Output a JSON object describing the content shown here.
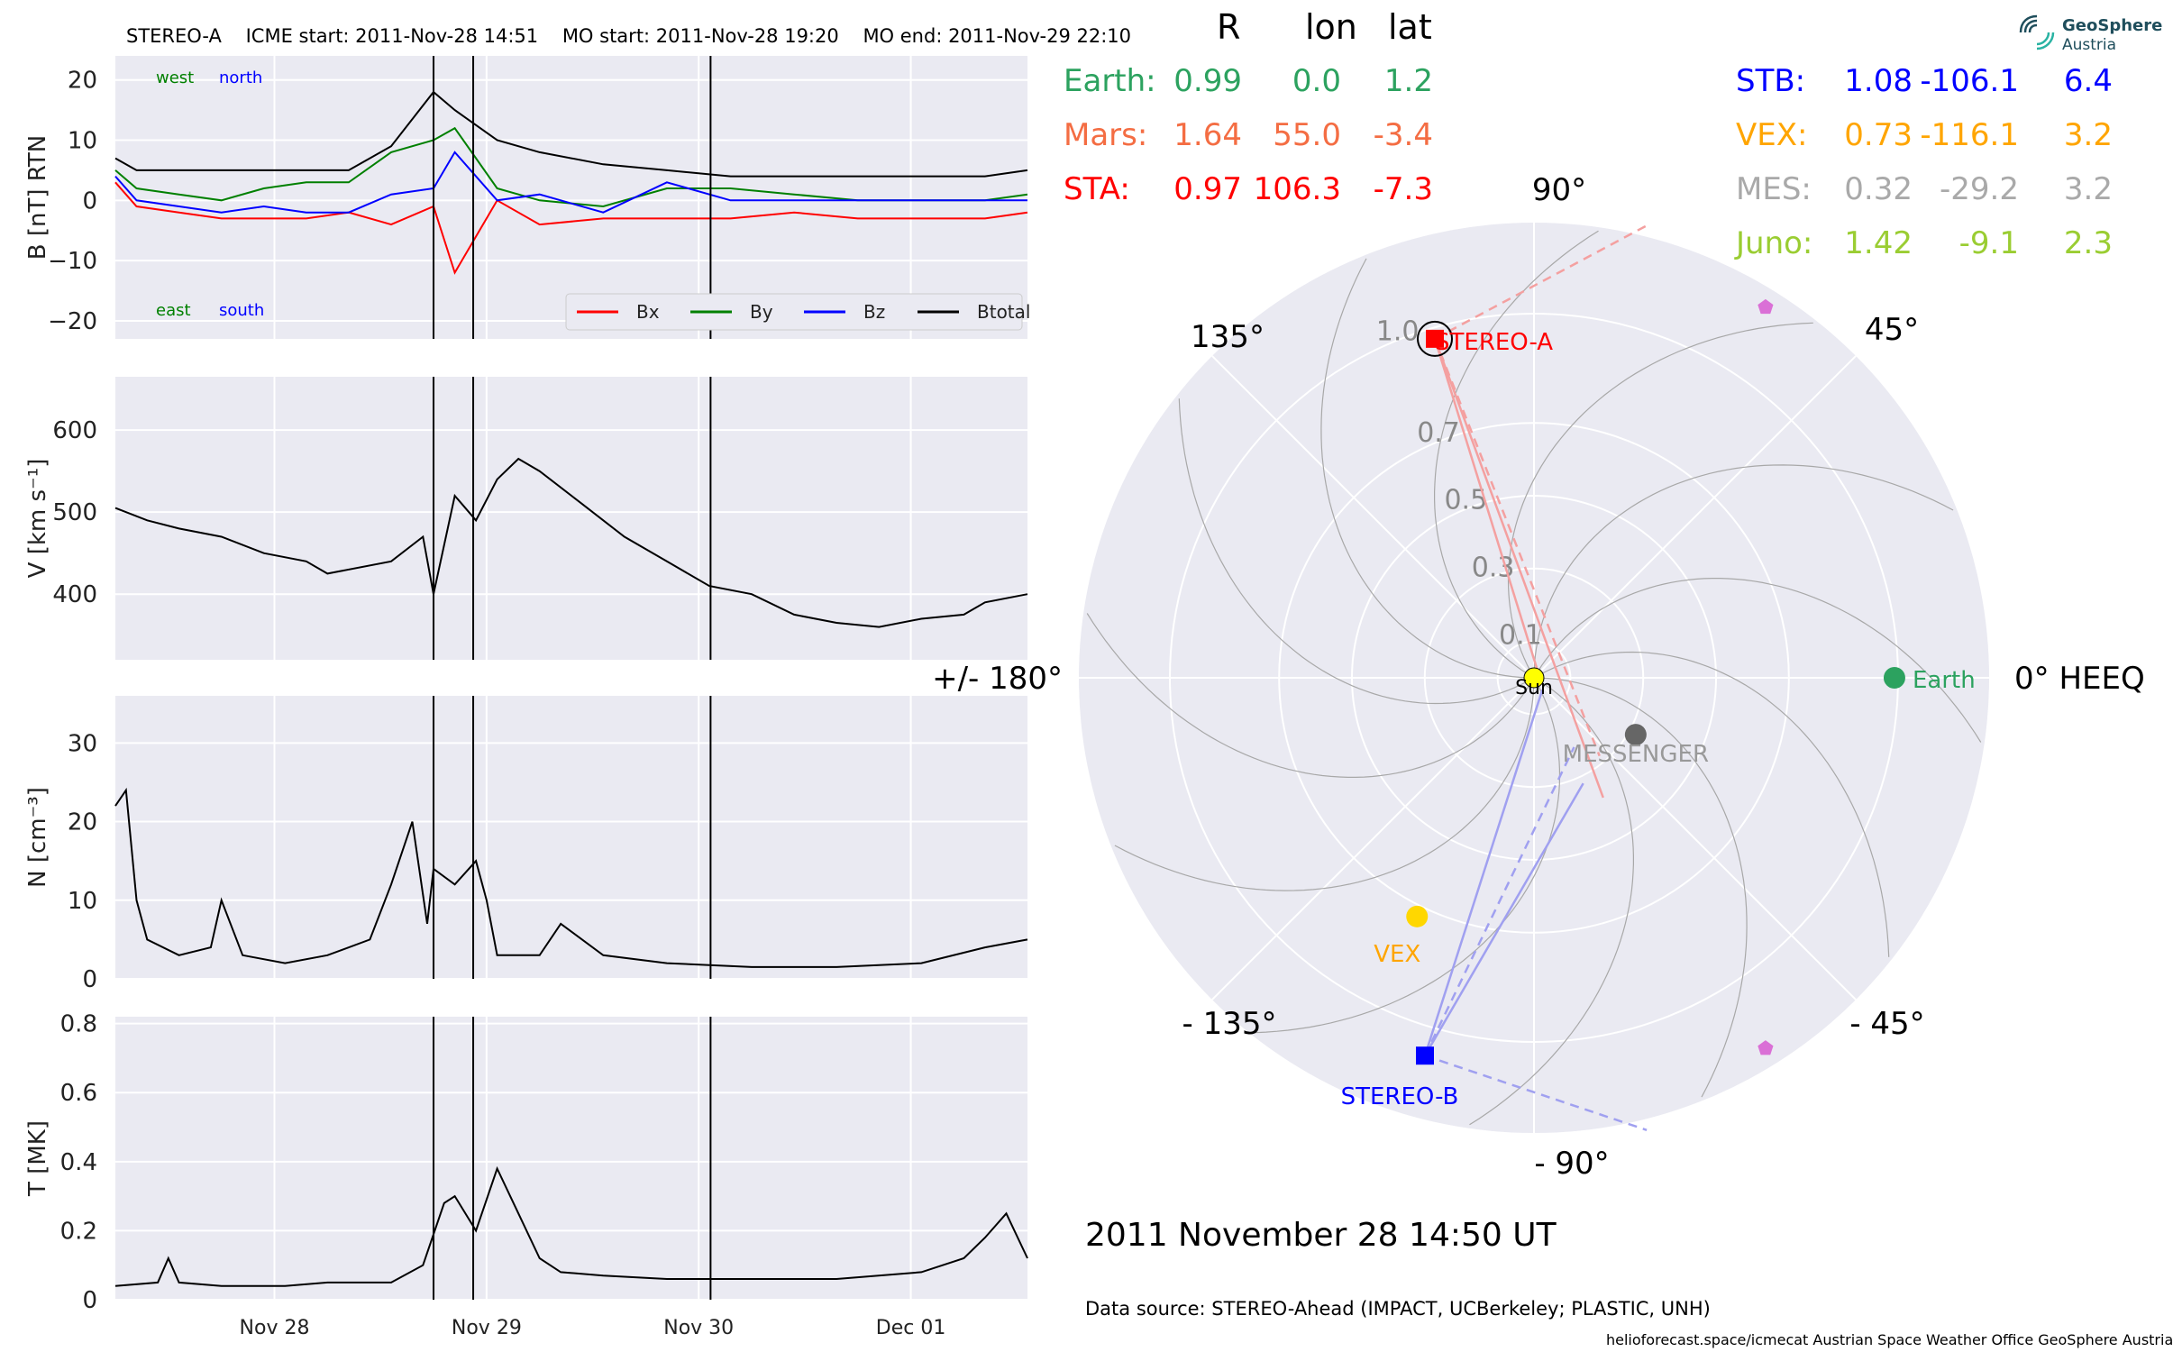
{
  "header": {
    "spacecraft": "STEREO-A",
    "icme_start": "ICME start: 2011-Nov-28 14:51",
    "mo_start": "MO start: 2011-Nov-28 19:20",
    "mo_end": "MO end: 2011-Nov-29 22:10"
  },
  "chart_data": [
    {
      "type": "line",
      "panel": "magnetic field",
      "ylabel": "B [nT] RTN",
      "ylim": [
        -23,
        24
      ],
      "yticks": [
        20,
        10,
        0,
        -10,
        -20
      ],
      "ytick_labels": [
        "20",
        "10",
        "0",
        "−10",
        "−20"
      ],
      "corner_labels": {
        "top_left_1": "west",
        "top_left_2": "north",
        "bottom_left_1": "east",
        "bottom_left_2": "south"
      },
      "legend": {
        "placement": "lower-right",
        "entries": [
          "Bx",
          "By",
          "Bz",
          "Btotal"
        ]
      },
      "series": [
        {
          "name": "Bx",
          "color": "#ff0000",
          "x": [
            0,
            0.1,
            0.3,
            0.5,
            0.7,
            0.9,
            1.1,
            1.3,
            1.5,
            1.6,
            1.8,
            2.0,
            2.3,
            2.6,
            2.9,
            3.2,
            3.5,
            3.8,
            4.1,
            4.3
          ],
          "y": [
            3,
            -1,
            -2,
            -3,
            -3,
            -3,
            -2,
            -4,
            -1,
            -12,
            0,
            -4,
            -3,
            -3,
            -3,
            -2,
            -3,
            -3,
            -3,
            -2
          ]
        },
        {
          "name": "By",
          "color": "#008000",
          "x": [
            0,
            0.1,
            0.3,
            0.5,
            0.7,
            0.9,
            1.1,
            1.3,
            1.5,
            1.6,
            1.8,
            2.0,
            2.3,
            2.6,
            2.9,
            3.2,
            3.5,
            3.8,
            4.1,
            4.3
          ],
          "y": [
            5,
            2,
            1,
            0,
            2,
            3,
            3,
            8,
            10,
            12,
            2,
            0,
            -1,
            2,
            2,
            1,
            0,
            0,
            0,
            1
          ]
        },
        {
          "name": "Bz",
          "color": "#0000ff",
          "x": [
            0,
            0.1,
            0.3,
            0.5,
            0.7,
            0.9,
            1.1,
            1.3,
            1.5,
            1.6,
            1.8,
            2.0,
            2.3,
            2.6,
            2.9,
            3.2,
            3.5,
            3.8,
            4.1,
            4.3
          ],
          "y": [
            4,
            0,
            -1,
            -2,
            -1,
            -2,
            -2,
            1,
            2,
            8,
            0,
            1,
            -2,
            3,
            0,
            0,
            0,
            0,
            0,
            0
          ]
        },
        {
          "name": "Btotal",
          "color": "#000000",
          "x": [
            0,
            0.1,
            0.3,
            0.5,
            0.7,
            0.9,
            1.1,
            1.3,
            1.5,
            1.6,
            1.8,
            2.0,
            2.3,
            2.6,
            2.9,
            3.2,
            3.5,
            3.8,
            4.1,
            4.3
          ],
          "y": [
            7,
            5,
            5,
            5,
            5,
            5,
            5,
            9,
            18,
            15,
            10,
            8,
            6,
            5,
            4,
            4,
            4,
            4,
            4,
            5
          ]
        }
      ]
    },
    {
      "type": "line",
      "panel": "speed",
      "ylabel": "V [km s⁻¹]",
      "ylim": [
        320,
        665
      ],
      "yticks": [
        600,
        500,
        400
      ],
      "series": [
        {
          "name": "",
          "color": "#000000",
          "x": [
            0,
            0.15,
            0.3,
            0.5,
            0.7,
            0.9,
            1.0,
            1.3,
            1.45,
            1.5,
            1.6,
            1.7,
            1.8,
            1.9,
            2.0,
            2.2,
            2.4,
            2.6,
            2.8,
            3.0,
            3.2,
            3.4,
            3.6,
            3.8,
            4.0,
            4.1,
            4.3
          ],
          "y": [
            505,
            490,
            480,
            470,
            450,
            440,
            425,
            440,
            470,
            400,
            520,
            490,
            540,
            565,
            550,
            510,
            470,
            440,
            410,
            400,
            375,
            365,
            360,
            370,
            375,
            390,
            400
          ]
        }
      ]
    },
    {
      "type": "line",
      "panel": "density",
      "ylabel": "N [cm⁻³]",
      "ylim": [
        0,
        36
      ],
      "yticks": [
        30,
        20,
        10,
        0
      ],
      "series": [
        {
          "name": "",
          "color": "#000000",
          "x": [
            0,
            0.05,
            0.1,
            0.15,
            0.3,
            0.45,
            0.5,
            0.6,
            0.8,
            1.0,
            1.2,
            1.3,
            1.4,
            1.47,
            1.5,
            1.6,
            1.7,
            1.75,
            1.8,
            2.0,
            2.1,
            2.3,
            2.6,
            3.0,
            3.4,
            3.8,
            4.1,
            4.3
          ],
          "y": [
            22,
            24,
            10,
            5,
            3,
            4,
            10,
            3,
            2,
            3,
            5,
            12,
            20,
            7,
            14,
            12,
            15,
            10,
            3,
            3,
            7,
            3,
            2,
            1.5,
            1.5,
            2,
            4,
            5
          ]
        }
      ]
    },
    {
      "type": "line",
      "panel": "temperature",
      "ylabel": "T [MK]",
      "ylim": [
        0,
        0.82
      ],
      "yticks": [
        0.8,
        0.6,
        0.4,
        0.2,
        0.0
      ],
      "x_tick_labels": [
        "Nov 28",
        "Nov 29",
        "Nov 30",
        "Dec 01"
      ],
      "x_ticks": [
        0.75,
        1.75,
        2.75,
        3.75
      ],
      "series": [
        {
          "name": "",
          "color": "#000000",
          "x": [
            0,
            0.2,
            0.25,
            0.3,
            0.5,
            0.8,
            1.0,
            1.3,
            1.45,
            1.55,
            1.6,
            1.7,
            1.8,
            1.9,
            2.0,
            2.1,
            2.3,
            2.6,
            3.0,
            3.4,
            3.8,
            4.0,
            4.1,
            4.2,
            4.3
          ],
          "y": [
            0.04,
            0.05,
            0.12,
            0.05,
            0.04,
            0.04,
            0.05,
            0.05,
            0.1,
            0.28,
            0.3,
            0.2,
            0.38,
            0.25,
            0.12,
            0.08,
            0.07,
            0.06,
            0.06,
            0.06,
            0.08,
            0.12,
            0.18,
            0.25,
            0.12
          ]
        }
      ]
    },
    {
      "type": "scatter",
      "panel": "polar position plot",
      "r_ticks": [
        "0.1",
        "0.3",
        "0.5",
        "0.7",
        "1.0"
      ],
      "r_values": [
        0.1,
        0.3,
        0.5,
        0.7,
        1.0
      ],
      "angle_labels": [
        "0° HEEQ",
        "45°",
        "90°",
        "135°",
        "+/- 180°",
        "- 135°",
        "- 90°",
        "- 45°"
      ],
      "bodies": [
        {
          "name": "Sun",
          "r": 0.0,
          "lon": 0.0,
          "color": "#ffff00",
          "marker": "circle"
        },
        {
          "name": "Earth",
          "r": 0.99,
          "lon": 0.0,
          "color": "#2ca25f",
          "marker": "circle"
        },
        {
          "name": "STEREO-A",
          "r": 0.97,
          "lon": 106.3,
          "color": "#ff0000",
          "marker": "square"
        },
        {
          "name": "STEREO-B",
          "r": 1.08,
          "lon": -106.1,
          "color": "#0000ff",
          "marker": "square"
        },
        {
          "name": "VEX",
          "r": 0.73,
          "lon": -116.1,
          "color": "#ffd700",
          "marker": "circle"
        },
        {
          "name": "MESSENGER",
          "r": 0.32,
          "lon": -29.2,
          "color": "#666666",
          "marker": "circle"
        },
        {
          "name": "",
          "r": 1.2,
          "lon": 58,
          "color": "#da70d6",
          "marker": "pentagon"
        },
        {
          "name": "",
          "r": 1.2,
          "lon": -58,
          "color": "#da70d6",
          "marker": "pentagon"
        }
      ]
    }
  ],
  "position_table": {
    "headers": [
      "R",
      "lon",
      "lat"
    ],
    "left_rows": [
      {
        "name": "Earth:",
        "r": "0.99",
        "lon": "0.0",
        "lat": "1.2",
        "color": "#2ca25f"
      },
      {
        "name": "Mars:",
        "r": "1.64",
        "lon": "55.0",
        "lat": "-3.4",
        "color": "#f46d43"
      },
      {
        "name": "STA:",
        "r": "0.97",
        "lon": "106.3",
        "lat": "-7.3",
        "color": "#ff0000"
      }
    ],
    "right_rows": [
      {
        "name": "STB:",
        "r": "1.08",
        "lon": "-106.1",
        "lat": "6.4",
        "color": "#0000ff"
      },
      {
        "name": "VEX:",
        "r": "0.73",
        "lon": "-116.1",
        "lat": "3.2",
        "color": "#ffa500"
      },
      {
        "name": "MES:",
        "r": "0.32",
        "lon": "-29.2",
        "lat": "3.2",
        "color": "#a9a9a9"
      },
      {
        "name": "Juno:",
        "r": "1.42",
        "lon": "-9.1",
        "lat": "2.3",
        "color": "#9acd32"
      }
    ]
  },
  "date_line": "2011 November 28  14:50 UT",
  "source_line": "Data source: STEREO-Ahead (IMPACT, UCBerkeley; PLASTIC, UNH)",
  "footer": "helioforecast.space/icmecat   Austrian Space Weather Office   GeoSphere Austria",
  "logo": {
    "line1": "GeoSphere",
    "line2": "Austria"
  },
  "colors": {
    "panel_bg": "#eaeaf2",
    "grid": "#ffffff",
    "event_line": "#000000"
  }
}
